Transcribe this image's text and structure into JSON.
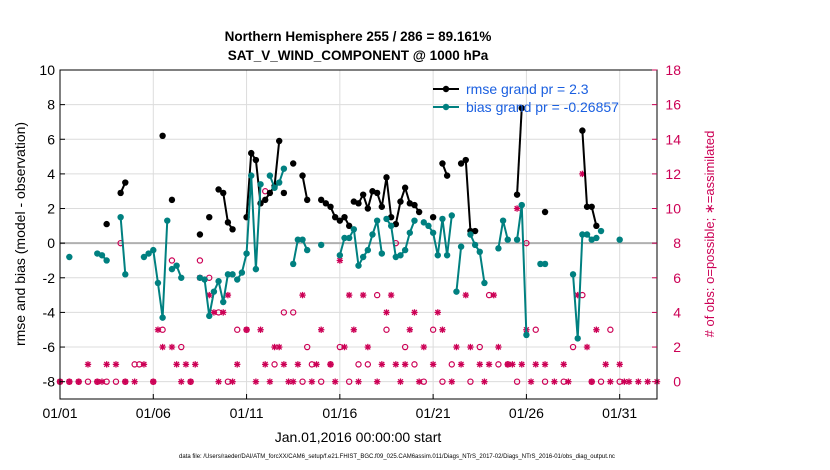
{
  "chart_data": {
    "type": "line",
    "title": "Northern Hemisphere 255 / 286 = 89.161%",
    "subtitle": "SAT_V_WIND_COMPONENT @ 1000 hPa",
    "xlabel": "Jan.01,2016 00:00:00 start",
    "ylabel": "rmse and bias (model - observation)",
    "y2label": "# of obs: o=possible; ∗=assimilated",
    "footer": "data file: /Users/raeder/DAI/ATM_forcXX/CAM6_setup/f.e21.FHIST_BGC.f09_025.CAM6assim.011/Diags_NTrS_2017-02/Diags_NTrS_2016-01/obs_diag_output.nc",
    "xlim": [
      0,
      32
    ],
    "ylim": [
      -9,
      10
    ],
    "y2lim": [
      -1,
      18
    ],
    "xtick_values": [
      0,
      5,
      10,
      15,
      20,
      25,
      30
    ],
    "xtick_labels": [
      "01/01",
      "01/06",
      "01/11",
      "01/16",
      "01/21",
      "01/26",
      "01/31"
    ],
    "ytick_values": [
      -8,
      -6,
      -4,
      -2,
      0,
      2,
      4,
      6,
      8,
      10
    ],
    "ytick_labels": [
      "-8",
      "-6",
      "-4",
      "-2",
      "0",
      "2",
      "4",
      "6",
      "8",
      "10"
    ],
    "y2tick_values": [
      0,
      2,
      4,
      6,
      8,
      10,
      12,
      14,
      16,
      18
    ],
    "y2tick_labels": [
      "0",
      "2",
      "4",
      "6",
      "8",
      "10",
      "12",
      "14",
      "16",
      "18"
    ],
    "grid": true,
    "legend_position": "top-right",
    "colors": {
      "rmse": "#000000",
      "bias": "#008080",
      "obs": "#cc0055",
      "legend_text": "#1a5fe0",
      "zero_line": "#b0b0b0",
      "grid": "#dcdcdc"
    },
    "series": [
      {
        "name": "rmse grand pr = 2.3",
        "axis": "left",
        "marker": "filled-circle",
        "segments": [
          [
            [
              2.5,
              1.1
            ]
          ],
          [
            [
              3.25,
              2.9
            ],
            [
              3.5,
              3.5
            ]
          ],
          [
            [
              5.5,
              6.2
            ]
          ],
          [
            [
              6.0,
              2.5
            ]
          ],
          [
            [
              7.5,
              0.5
            ]
          ],
          [
            [
              8.0,
              1.5
            ]
          ],
          [
            [
              8.5,
              3.1
            ],
            [
              8.75,
              2.9
            ],
            [
              9.0,
              1.2
            ],
            [
              9.25,
              0.8
            ]
          ],
          [
            [
              10.0,
              1.5
            ],
            [
              10.25,
              5.2
            ],
            [
              10.5,
              4.8
            ],
            [
              10.75,
              2.3
            ],
            [
              11.0,
              2.5
            ],
            [
              11.25,
              2.9
            ],
            [
              11.5,
              3.3
            ],
            [
              11.75,
              5.9
            ]
          ],
          [
            [
              12.0,
              2.9
            ]
          ],
          [
            [
              12.5,
              4.6
            ]
          ],
          [
            [
              13.0,
              3.9
            ],
            [
              13.25,
              2.5
            ]
          ],
          [
            [
              14.0,
              2.5
            ],
            [
              14.25,
              2.3
            ],
            [
              14.5,
              2.1
            ],
            [
              14.75,
              1.5
            ],
            [
              15.0,
              1.3
            ],
            [
              15.25,
              1.5
            ],
            [
              15.5,
              1.0
            ]
          ],
          [
            [
              15.75,
              2.4
            ],
            [
              16.0,
              2.3
            ],
            [
              16.25,
              2.8
            ],
            [
              16.5,
              2.0
            ],
            [
              16.75,
              3.0
            ],
            [
              17.0,
              2.9
            ],
            [
              17.25,
              2.1
            ],
            [
              17.5,
              3.8
            ],
            [
              17.75,
              1.5
            ]
          ],
          [
            [
              18.0,
              1.1
            ],
            [
              18.25,
              2.4
            ],
            [
              18.5,
              3.2
            ],
            [
              18.75,
              2.3
            ]
          ],
          [
            [
              19.0,
              2.2
            ],
            [
              19.25,
              1.8
            ]
          ],
          [
            [
              20.0,
              1.5
            ]
          ],
          [
            [
              20.5,
              4.6
            ],
            [
              20.75,
              3.9
            ]
          ],
          [
            [
              21.5,
              4.6
            ],
            [
              21.75,
              4.8
            ],
            [
              22.0,
              0.7
            ],
            [
              22.25,
              0.7
            ]
          ],
          [
            [
              24.5,
              2.8
            ],
            [
              24.75,
              7.8
            ]
          ],
          [
            [
              26.0,
              1.8
            ]
          ],
          [
            [
              28.0,
              6.5
            ],
            [
              28.25,
              2.1
            ],
            [
              28.5,
              2.1
            ],
            [
              28.75,
              1.0
            ]
          ]
        ]
      },
      {
        "name": "bias grand pr = -0.26857",
        "axis": "left",
        "marker": "filled-circle",
        "segments": [
          [
            [
              0.5,
              -0.8
            ]
          ],
          [
            [
              2.0,
              -0.6
            ]
          ],
          [
            [
              2.25,
              -0.7
            ],
            [
              2.5,
              -1.0
            ]
          ],
          [
            [
              3.25,
              1.5
            ],
            [
              3.5,
              -1.8
            ]
          ],
          [
            [
              4.5,
              -0.8
            ],
            [
              4.75,
              -0.6
            ],
            [
              5.0,
              -0.4
            ],
            [
              5.25,
              -2.3
            ],
            [
              5.5,
              -4.3
            ],
            [
              5.75,
              1.3
            ]
          ],
          [
            [
              6.0,
              -1.5
            ],
            [
              6.25,
              -1.3
            ],
            [
              6.5,
              -2.0
            ]
          ],
          [
            [
              7.5,
              -2.0
            ],
            [
              7.75,
              -2.1
            ],
            [
              8.0,
              -4.2
            ],
            [
              8.25,
              -2.8
            ],
            [
              8.5,
              -2.2
            ],
            [
              8.75,
              -3.4
            ],
            [
              9.0,
              -1.8
            ],
            [
              9.25,
              -1.8
            ]
          ],
          [
            [
              9.5,
              -2.1
            ],
            [
              9.75,
              -1.7
            ],
            [
              10.0,
              -0.6
            ],
            [
              10.25,
              3.9
            ],
            [
              10.5,
              -1.5
            ],
            [
              10.75,
              3.4
            ]
          ],
          [
            [
              11.25,
              3.9
            ],
            [
              11.5,
              3.2
            ],
            [
              11.75,
              3.5
            ],
            [
              12.0,
              4.3
            ]
          ],
          [
            [
              12.5,
              -1.2
            ],
            [
              12.75,
              0.2
            ]
          ],
          [
            [
              13.0,
              0.2
            ],
            [
              13.25,
              -0.4
            ]
          ],
          [
            [
              14.0,
              -0.1
            ]
          ],
          [
            [
              15.0,
              -0.7
            ],
            [
              15.25,
              0.3
            ],
            [
              15.5,
              0.3
            ],
            [
              15.75,
              0.8
            ],
            [
              16.0,
              -1.3
            ],
            [
              16.25,
              -0.8
            ],
            [
              16.5,
              -0.4
            ],
            [
              16.75,
              0.5
            ],
            [
              17.0,
              1.3
            ],
            [
              17.25,
              -0.6
            ]
          ],
          [
            [
              17.5,
              1.4
            ],
            [
              17.75,
              1.0
            ],
            [
              18.0,
              -0.8
            ],
            [
              18.25,
              -0.7
            ],
            [
              18.5,
              -0.4
            ],
            [
              18.75,
              0.6
            ],
            [
              19.0,
              1.3
            ]
          ],
          [
            [
              19.5,
              1.2
            ]
          ],
          [
            [
              19.75,
              1.0
            ],
            [
              20.0,
              0.6
            ],
            [
              20.25,
              -0.7
            ],
            [
              20.5,
              1.4
            ],
            [
              20.75,
              -0.7
            ],
            [
              21.0,
              1.6
            ]
          ],
          [
            [
              21.25,
              -2.8
            ],
            [
              21.5,
              -0.2
            ]
          ],
          [
            [
              22.0,
              0.5
            ],
            [
              22.25,
              -0.1
            ],
            [
              22.5,
              -0.5
            ],
            [
              22.75,
              -2.3
            ]
          ],
          [
            [
              23.5,
              -0.3
            ],
            [
              23.75,
              1.3
            ],
            [
              24.0,
              0.2
            ]
          ],
          [
            [
              24.5,
              0.2
            ],
            [
              24.75,
              2.2
            ],
            [
              25.0,
              -5.3
            ]
          ],
          [
            [
              25.75,
              -1.2
            ],
            [
              26.0,
              -1.2
            ]
          ],
          [
            [
              27.5,
              -1.8
            ],
            [
              27.75,
              -5.5
            ],
            [
              28.0,
              0.5
            ],
            [
              28.25,
              0.5
            ],
            [
              28.5,
              0.2
            ],
            [
              28.75,
              0.3
            ]
          ],
          [
            [
              29.0,
              0.7
            ]
          ],
          [
            [
              30.0,
              0.2
            ]
          ]
        ]
      }
    ],
    "obs_possible": [
      [
        0.0,
        0
      ],
      [
        0.5,
        0
      ],
      [
        1.0,
        0
      ],
      [
        1.5,
        0
      ],
      [
        2.0,
        0
      ],
      [
        2.5,
        0
      ],
      [
        3.0,
        0
      ],
      [
        3.25,
        8
      ],
      [
        3.5,
        0
      ],
      [
        4.0,
        1
      ],
      [
        4.25,
        1
      ],
      [
        5.0,
        0
      ],
      [
        5.5,
        3
      ],
      [
        6.0,
        7
      ],
      [
        6.5,
        2
      ],
      [
        7.0,
        0
      ],
      [
        7.5,
        7
      ],
      [
        8.0,
        6
      ],
      [
        8.5,
        4
      ],
      [
        9.0,
        0
      ],
      [
        9.5,
        3
      ],
      [
        10.0,
        3
      ],
      [
        11.0,
        11
      ],
      [
        11.5,
        1
      ],
      [
        12.0,
        4
      ],
      [
        12.5,
        4
      ],
      [
        13.0,
        0
      ],
      [
        13.25,
        2
      ],
      [
        13.5,
        1
      ],
      [
        14.0,
        0
      ],
      [
        14.5,
        1
      ],
      [
        15.0,
        2
      ],
      [
        15.5,
        0
      ],
      [
        16.0,
        1
      ],
      [
        16.5,
        1
      ],
      [
        17.0,
        5
      ],
      [
        17.5,
        3
      ],
      [
        18.0,
        8
      ],
      [
        18.5,
        2
      ],
      [
        19.0,
        1
      ],
      [
        19.5,
        0
      ],
      [
        20.0,
        3
      ],
      [
        20.5,
        0
      ],
      [
        21.0,
        1
      ],
      [
        22.0,
        0
      ],
      [
        22.5,
        2
      ],
      [
        23.0,
        5
      ],
      [
        23.5,
        1
      ],
      [
        24.0,
        1
      ],
      [
        24.5,
        0
      ],
      [
        25.0,
        8
      ],
      [
        25.5,
        3
      ],
      [
        26.0,
        0
      ],
      [
        27.0,
        0
      ],
      [
        27.5,
        2
      ],
      [
        28.0,
        5
      ],
      [
        28.5,
        0
      ],
      [
        29.0,
        0
      ],
      [
        29.5,
        3
      ],
      [
        30.0,
        0
      ]
    ],
    "obs_assimilated": [
      [
        0.0,
        0
      ],
      [
        0.5,
        0
      ],
      [
        1.0,
        0
      ],
      [
        1.5,
        1
      ],
      [
        2.0,
        0
      ],
      [
        2.25,
        0
      ],
      [
        2.5,
        1
      ],
      [
        3.0,
        1
      ],
      [
        3.5,
        0
      ],
      [
        4.0,
        0
      ],
      [
        4.5,
        1
      ],
      [
        5.0,
        0
      ],
      [
        5.25,
        3
      ],
      [
        5.5,
        2
      ],
      [
        6.0,
        2
      ],
      [
        6.25,
        1
      ],
      [
        6.5,
        0
      ],
      [
        6.75,
        1
      ],
      [
        7.0,
        0
      ],
      [
        7.25,
        1
      ],
      [
        7.5,
        6
      ],
      [
        8.0,
        5
      ],
      [
        8.25,
        4
      ],
      [
        8.5,
        0
      ],
      [
        8.75,
        4
      ],
      [
        9.0,
        5
      ],
      [
        9.25,
        0
      ],
      [
        9.5,
        1
      ],
      [
        10.0,
        3
      ],
      [
        10.5,
        0
      ],
      [
        10.75,
        3
      ],
      [
        11.0,
        1
      ],
      [
        11.25,
        0
      ],
      [
        11.5,
        2
      ],
      [
        11.75,
        2
      ],
      [
        12.0,
        1
      ],
      [
        12.25,
        0
      ],
      [
        12.5,
        0
      ],
      [
        12.75,
        1
      ],
      [
        13.0,
        5
      ],
      [
        13.5,
        0
      ],
      [
        13.75,
        1
      ],
      [
        14.0,
        3
      ],
      [
        14.5,
        1
      ],
      [
        14.75,
        0
      ],
      [
        15.0,
        7
      ],
      [
        15.25,
        2
      ],
      [
        15.5,
        5
      ],
      [
        15.75,
        3
      ],
      [
        16.0,
        0
      ],
      [
        16.25,
        5
      ],
      [
        16.5,
        2
      ],
      [
        17.0,
        0
      ],
      [
        17.25,
        1
      ],
      [
        17.5,
        4
      ],
      [
        17.75,
        5
      ],
      [
        18.0,
        1
      ],
      [
        18.25,
        0
      ],
      [
        18.5,
        1
      ],
      [
        18.75,
        3
      ],
      [
        19.0,
        4
      ],
      [
        19.25,
        0
      ],
      [
        19.5,
        2
      ],
      [
        20.0,
        1
      ],
      [
        20.25,
        4
      ],
      [
        20.5,
        3
      ],
      [
        21.0,
        0
      ],
      [
        21.25,
        2
      ],
      [
        21.5,
        1
      ],
      [
        21.75,
        5
      ],
      [
        22.0,
        2
      ],
      [
        22.5,
        1
      ],
      [
        22.75,
        0
      ],
      [
        23.0,
        1
      ],
      [
        23.25,
        5
      ],
      [
        23.5,
        2
      ],
      [
        24.0,
        1
      ],
      [
        24.25,
        1
      ],
      [
        24.5,
        10
      ],
      [
        24.75,
        1
      ],
      [
        25.0,
        3
      ],
      [
        25.25,
        0
      ],
      [
        25.5,
        1
      ],
      [
        26.0,
        1
      ],
      [
        26.5,
        0
      ],
      [
        27.0,
        1
      ],
      [
        27.25,
        0
      ],
      [
        27.75,
        5
      ],
      [
        28.0,
        12
      ],
      [
        28.25,
        2
      ],
      [
        28.5,
        0
      ],
      [
        28.75,
        3
      ],
      [
        29.25,
        1
      ],
      [
        29.5,
        0
      ],
      [
        30.0,
        1
      ],
      [
        30.25,
        0
      ],
      [
        30.5,
        0
      ],
      [
        31.0,
        0
      ],
      [
        31.5,
        0
      ],
      [
        32.0,
        0
      ]
    ]
  }
}
